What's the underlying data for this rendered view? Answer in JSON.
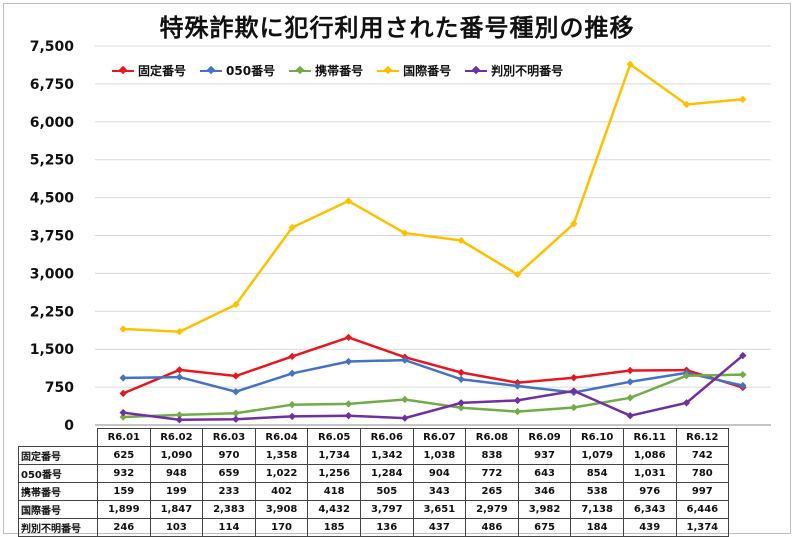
{
  "chart_data": {
    "type": "line",
    "title": "特殊詐欺に犯行利用された番号種別の推移",
    "categories": [
      "R6.01",
      "R6.02",
      "R6.03",
      "R6.04",
      "R6.05",
      "R6.06",
      "R6.07",
      "R6.08",
      "R6.09",
      "R6.10",
      "R6.11",
      "R6.12"
    ],
    "ylim": [
      0,
      7500
    ],
    "yticks": [
      "0",
      "750",
      "1,500",
      "2,250",
      "3,000",
      "3,750",
      "4,500",
      "5,250",
      "6,000",
      "6,750",
      "7,500"
    ],
    "grid": true,
    "legend_position": "top-left",
    "series": [
      {
        "name": "固定番号",
        "color": "#e8171e",
        "values": [
          625,
          1090,
          970,
          1358,
          1734,
          1342,
          1038,
          838,
          937,
          1079,
          1086,
          742
        ],
        "labels": [
          "625",
          "1,090",
          "970",
          "1,358",
          "1,734",
          "1,342",
          "1,038",
          "838",
          "937",
          "1,079",
          "1,086",
          "742"
        ]
      },
      {
        "name": "050番号",
        "color": "#4472c4",
        "values": [
          932,
          948,
          659,
          1022,
          1256,
          1284,
          904,
          772,
          643,
          854,
          1031,
          780
        ],
        "labels": [
          "932",
          "948",
          "659",
          "1,022",
          "1,256",
          "1,284",
          "904",
          "772",
          "643",
          "854",
          "1,031",
          "780"
        ]
      },
      {
        "name": "携帯番号",
        "color": "#70ad47",
        "values": [
          159,
          199,
          233,
          402,
          418,
          505,
          343,
          265,
          346,
          538,
          976,
          997
        ],
        "labels": [
          "159",
          "199",
          "233",
          "402",
          "418",
          "505",
          "343",
          "265",
          "346",
          "538",
          "976",
          "997"
        ]
      },
      {
        "name": "国際番号",
        "color": "#ffc000",
        "values": [
          1899,
          1847,
          2383,
          3908,
          4432,
          3797,
          3651,
          2979,
          3982,
          7138,
          6343,
          6446
        ],
        "labels": [
          "1,899",
          "1,847",
          "2,383",
          "3,908",
          "4,432",
          "3,797",
          "3,651",
          "2,979",
          "3,982",
          "7,138",
          "6,343",
          "6,446"
        ]
      },
      {
        "name": "判別不明番号",
        "color": "#7030a0",
        "values": [
          246,
          103,
          114,
          170,
          185,
          136,
          437,
          486,
          675,
          184,
          439,
          1374
        ],
        "labels": [
          "246",
          "103",
          "114",
          "170",
          "185",
          "136",
          "437",
          "486",
          "675",
          "184",
          "439",
          "1,374"
        ]
      }
    ]
  }
}
